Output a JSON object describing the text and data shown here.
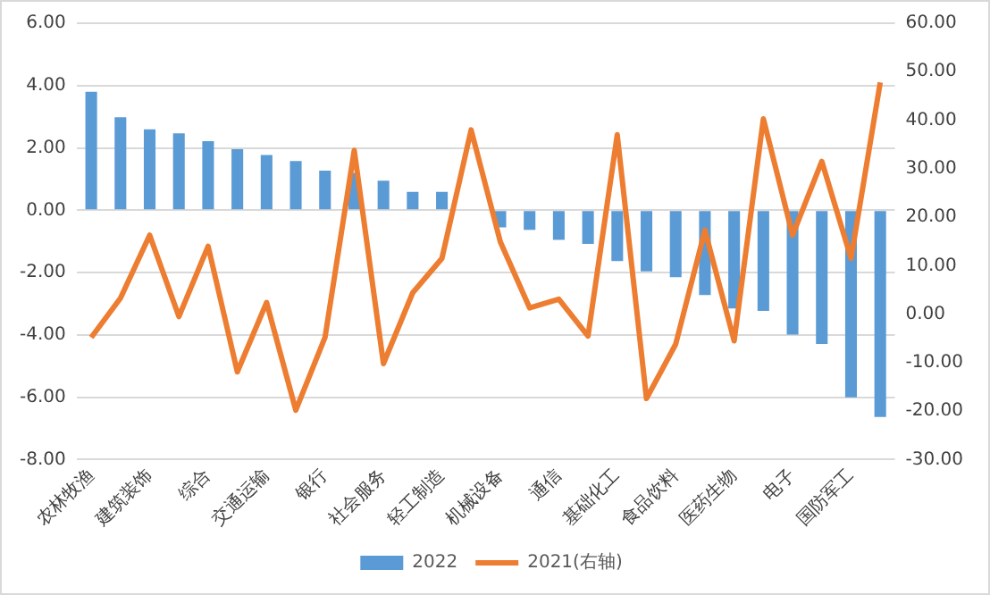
{
  "chart_data": {
    "type": "bar",
    "categories": [
      "农林牧渔",
      null,
      "建筑装饰",
      null,
      "综合",
      null,
      "交通运输",
      null,
      "银行",
      null,
      "社会服务",
      null,
      "轻工制造",
      null,
      "机械设备",
      null,
      "通信",
      null,
      "基础化工",
      null,
      "食品饮料",
      null,
      "医药生物",
      null,
      "电子",
      null,
      "国防军工",
      null
    ],
    "series": [
      {
        "name": "2022",
        "color": "#5b9bd5",
        "values": [
          3.8,
          2.98,
          2.6,
          2.47,
          2.22,
          1.96,
          1.77,
          1.58,
          1.27,
          1.2,
          0.95,
          0.59,
          0.59,
          null,
          -0.55,
          -0.63,
          -0.95,
          -1.08,
          -1.63,
          -1.96,
          -2.15,
          -2.72,
          -3.15,
          -3.23,
          -3.99,
          -4.29,
          -6.0,
          -6.63
        ]
      },
      {
        "name": "2021(右轴)",
        "type": "line",
        "axis": "y2",
        "color": "#ed7d31",
        "values": [
          -4.8,
          3.3,
          16.3,
          -0.5,
          14.0,
          -11.9,
          2.4,
          -19.8,
          -4.8,
          33.8,
          -10.2,
          4.4,
          11.5,
          38.0,
          14.9,
          1.3,
          3.1,
          -4.5,
          37.0,
          -17.4,
          -6.2,
          17.3,
          -5.5,
          40.3,
          16.3,
          31.5,
          11.5,
          47.8
        ]
      }
    ],
    "ylim": [
      -8,
      6
    ],
    "yticks": [
      {
        "value": -8,
        "label": "-8.00"
      },
      {
        "value": -6,
        "label": "-6.00"
      },
      {
        "value": -4,
        "label": "-4.00"
      },
      {
        "value": -2,
        "label": "-2.00"
      },
      {
        "value": 0,
        "label": "0.00"
      },
      {
        "value": 2,
        "label": "2.00"
      },
      {
        "value": 4,
        "label": "4.00"
      },
      {
        "value": 6,
        "label": "6.00"
      }
    ],
    "y2lim": [
      -30,
      60
    ],
    "y2ticks": [
      {
        "value": -30,
        "label": "-30.00"
      },
      {
        "value": -20,
        "label": "-20.00"
      },
      {
        "value": -10,
        "label": "-10.00"
      },
      {
        "value": 0,
        "label": "0.00"
      },
      {
        "value": 10,
        "label": "10.00"
      },
      {
        "value": 20,
        "label": "20.00"
      },
      {
        "value": 30,
        "label": "30.00"
      },
      {
        "value": 40,
        "label": "40.00"
      },
      {
        "value": 50,
        "label": "50.00"
      },
      {
        "value": 60,
        "label": "60.00"
      }
    ],
    "grid": "y",
    "legend": "bottom",
    "marker": "none",
    "line_style": "solid"
  }
}
